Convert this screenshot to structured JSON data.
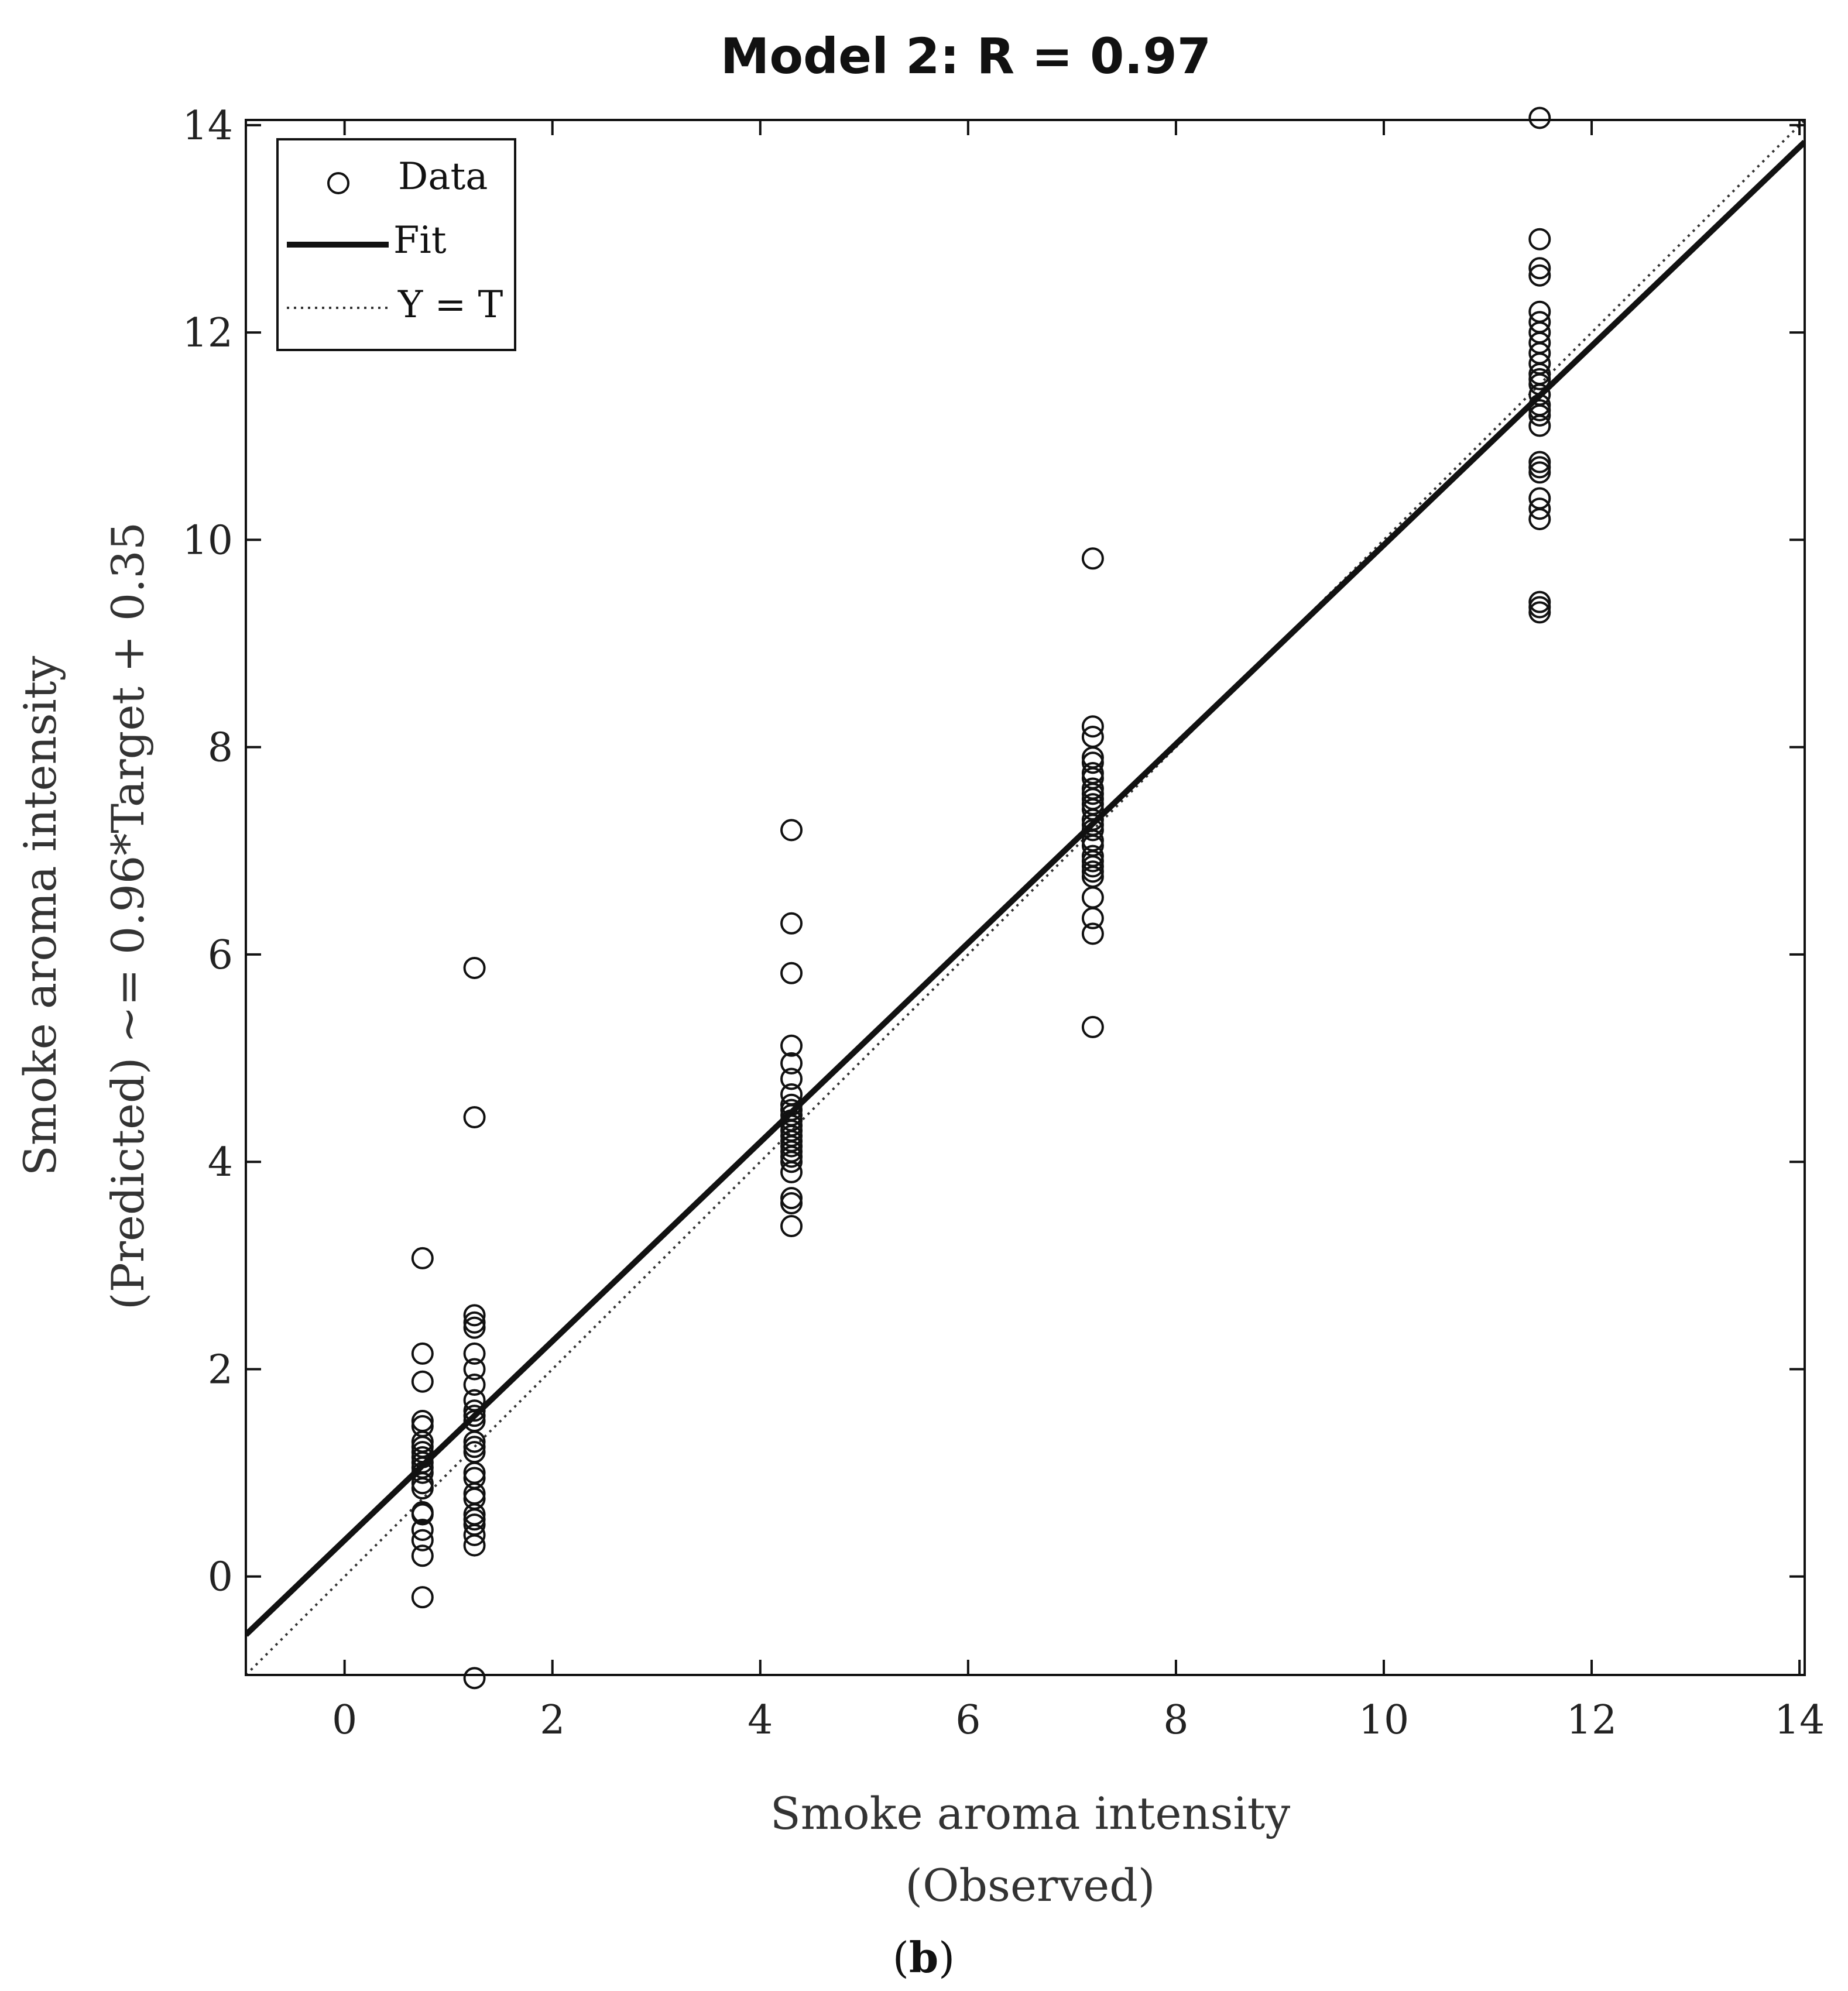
{
  "chart_data": {
    "type": "scatter",
    "title": "Model 2: R = 0.97",
    "xlabel_lines": [
      "Smoke aroma intensity",
      "(Observed)"
    ],
    "ylabel_lines": [
      "Smoke aroma intensity",
      "(Predicted) ~= 0.96*Target + 0.35"
    ],
    "xlim": [
      -0.95,
      14.05
    ],
    "ylim": [
      -0.95,
      14.05
    ],
    "xticks": [
      0,
      2,
      4,
      6,
      8,
      10,
      12,
      14
    ],
    "yticks": [
      0,
      2,
      4,
      6,
      8,
      10,
      12,
      14
    ],
    "xtick_labels": [
      "0",
      "2",
      "4",
      "6",
      "8",
      "10",
      "12",
      "14"
    ],
    "ytick_labels": [
      "0",
      "2",
      "4",
      "6",
      "8",
      "10",
      "12",
      "14"
    ],
    "legend": {
      "position": "top-left",
      "entries": [
        {
          "label": "Data",
          "style": "circle"
        },
        {
          "label": "Fit",
          "style": "solid"
        },
        {
          "label": "Y = T",
          "style": "dotted"
        }
      ]
    },
    "fit": {
      "slope": 0.96,
      "intercept": 0.35
    },
    "identity_line": {
      "slope": 1,
      "intercept": 0
    },
    "series": [
      {
        "name": "Data",
        "x": 0.75,
        "y": [
          -0.2,
          0.2,
          0.35,
          0.45,
          0.6,
          0.62,
          0.85,
          0.9,
          1.0,
          1.05,
          1.1,
          1.15,
          1.2,
          1.25,
          1.3,
          1.45,
          1.5,
          1.88,
          2.15,
          3.07
        ]
      },
      {
        "name": "Data",
        "x": 1.25,
        "y": [
          -0.98,
          0.3,
          0.4,
          0.5,
          0.55,
          0.6,
          0.75,
          0.8,
          0.95,
          1.0,
          1.2,
          1.25,
          1.3,
          1.5,
          1.55,
          1.6,
          1.7,
          1.85,
          2.0,
          2.15,
          2.4,
          2.45,
          2.52,
          4.43,
          5.87
        ]
      },
      {
        "name": "Data",
        "x": 4.3,
        "y": [
          3.38,
          3.6,
          3.65,
          3.9,
          4.0,
          4.05,
          4.1,
          4.15,
          4.2,
          4.25,
          4.3,
          4.35,
          4.4,
          4.45,
          4.5,
          4.55,
          4.65,
          4.8,
          4.95,
          5.12,
          5.82,
          6.3,
          7.2
        ]
      },
      {
        "name": "Data",
        "x": 7.2,
        "y": [
          5.3,
          6.2,
          6.35,
          6.55,
          6.75,
          6.8,
          6.85,
          6.9,
          6.95,
          7.05,
          7.1,
          7.2,
          7.25,
          7.3,
          7.4,
          7.45,
          7.5,
          7.55,
          7.6,
          7.7,
          7.75,
          7.85,
          7.9,
          8.1,
          8.2,
          9.82
        ]
      },
      {
        "name": "Data",
        "x": 11.5,
        "y": [
          9.3,
          9.35,
          9.4,
          10.2,
          10.3,
          10.4,
          10.65,
          10.7,
          10.75,
          11.1,
          11.2,
          11.25,
          11.3,
          11.4,
          11.5,
          11.55,
          11.6,
          11.7,
          11.8,
          11.9,
          12.0,
          12.1,
          12.2,
          12.55,
          12.62,
          12.9,
          14.07
        ]
      }
    ]
  },
  "panel_label": {
    "open": "(",
    "letter": "b",
    "close": ")"
  }
}
